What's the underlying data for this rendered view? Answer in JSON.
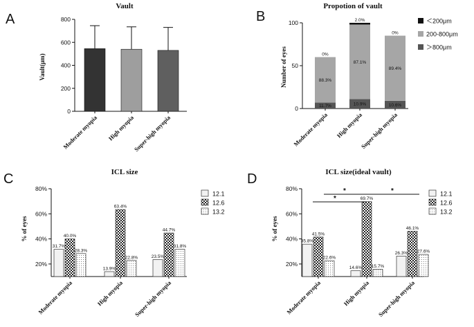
{
  "panels": {
    "a": {
      "letter": "A"
    },
    "b": {
      "letter": "B"
    },
    "c": {
      "letter": "C"
    },
    "d": {
      "letter": "D"
    }
  },
  "colors": {
    "vault_bars": [
      "#333333",
      "#9e9e9e",
      "#5f5f5f"
    ],
    "prop_lt200": "#111111",
    "prop_mid": "#a6a6a6",
    "prop_gt800": "#555555"
  },
  "chart_data": [
    {
      "id": "A",
      "type": "bar",
      "title": "Vault",
      "ylabel": "Vault(μm)",
      "categories": [
        "Moderate myopia",
        "High myopia",
        "Super-high myopia"
      ],
      "values": [
        545,
        540,
        530
      ],
      "error_upper": [
        745,
        735,
        730
      ],
      "ylim": [
        0,
        800
      ],
      "yticks": [
        "0",
        "200",
        "400",
        "600",
        "800"
      ],
      "ytick_values": [
        0,
        200,
        400,
        600,
        800
      ]
    },
    {
      "id": "B",
      "type": "bar",
      "stacked": true,
      "title": "Propotion of vault",
      "ylabel": "Number of eyes",
      "categories": [
        "Moderate myopia",
        "High myopia",
        "Super-high myopia"
      ],
      "totals": [
        60,
        100,
        85
      ],
      "series": [
        {
          "name": "＞800μm",
          "percent": [
            11.7,
            10.9,
            10.6
          ],
          "labels": [
            "11.7%",
            "10.9%",
            "10.6%"
          ]
        },
        {
          "name": "200-800μm",
          "percent": [
            88.3,
            87.1,
            89.4
          ],
          "labels": [
            "88.3%",
            "87.1%",
            "89.4%"
          ]
        },
        {
          "name": "＜200μm",
          "percent": [
            0,
            2.0,
            0
          ],
          "labels": [
            "0%",
            "2.0%",
            "0%"
          ]
        }
      ],
      "legend": [
        "＜200μm",
        "200-800μm",
        "＞800μm"
      ],
      "ylim": [
        0,
        100
      ],
      "yticks": [
        "0",
        "50",
        "100"
      ],
      "ytick_values": [
        0,
        50,
        100
      ]
    },
    {
      "id": "C",
      "type": "bar",
      "title": "ICL size",
      "ylabel": "% of eyes",
      "categories": [
        "Moderate myopia",
        "High myopia",
        "Super-high myopia"
      ],
      "series": [
        {
          "name": "12.1",
          "values": [
            31.7,
            13.9,
            23.5
          ],
          "labels": [
            "31.7%",
            "13.9%",
            "23.5%"
          ]
        },
        {
          "name": "12.6",
          "values": [
            40.0,
            63.4,
            44.7
          ],
          "labels": [
            "40.0%",
            "63.4%",
            "44.7%"
          ]
        },
        {
          "name": "13.2",
          "values": [
            28.3,
            22.8,
            31.8
          ],
          "labels": [
            "28.3%",
            "22.8%",
            "31.8%"
          ]
        }
      ],
      "ylim": [
        10,
        80
      ],
      "yticks": [
        "20%",
        "40%",
        "60%",
        "80%"
      ],
      "ytick_values": [
        20,
        40,
        60,
        80
      ]
    },
    {
      "id": "D",
      "type": "bar",
      "title": "ICL size(ideal vault)",
      "ylabel": "% of eyes",
      "categories": [
        "Moderate myopia",
        "High myopia",
        "Super-high myopia"
      ],
      "series": [
        {
          "name": "12.1",
          "values": [
            35.8,
            14.6,
            26.3
          ],
          "labels": [
            "35.8%",
            "14.6%",
            "26.3%"
          ]
        },
        {
          "name": "12.6",
          "values": [
            41.5,
            69.7,
            46.1
          ],
          "labels": [
            "41.5%",
            "69.7%",
            "46.1%"
          ]
        },
        {
          "name": "13.2",
          "values": [
            22.6,
            15.7,
            27.6
          ],
          "labels": [
            "22.6%",
            "15.7%",
            "27.6%"
          ]
        }
      ],
      "significance": [
        "*",
        "*",
        "*"
      ],
      "ylim": [
        10,
        80
      ],
      "yticks": [
        "20%",
        "40%",
        "60%",
        "80%"
      ],
      "ytick_values": [
        20,
        40,
        60,
        80
      ]
    }
  ]
}
